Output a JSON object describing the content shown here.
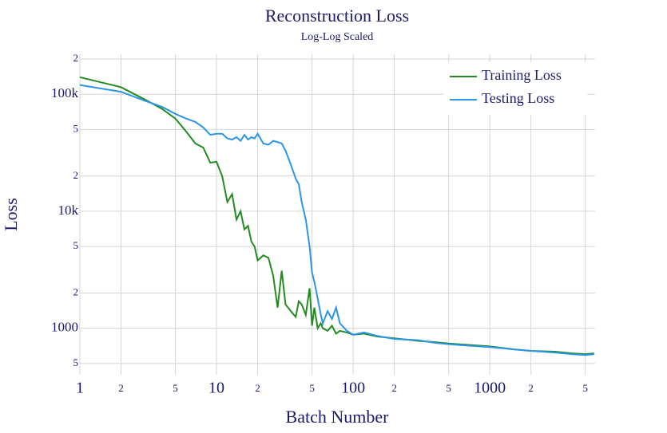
{
  "chart_data": {
    "type": "line",
    "title": "Reconstruction Loss",
    "subtitle": "Log-Log Scaled",
    "x_label": "Batch Number",
    "y_label": "Loss",
    "x_log": true,
    "y_log": true,
    "grid": true,
    "legend_position": "top-right",
    "x": [
      1,
      2,
      3,
      4,
      5,
      6,
      7,
      8,
      9,
      10,
      11,
      12,
      13,
      14,
      15,
      16,
      17,
      18,
      19,
      20,
      22,
      24,
      26,
      28,
      30,
      32,
      35,
      38,
      40,
      42,
      45,
      48,
      50,
      52,
      55,
      58,
      60,
      65,
      70,
      75,
      80,
      90,
      100,
      120,
      150,
      200,
      300,
      400,
      500,
      700,
      1000,
      1500,
      2000,
      3000,
      4000,
      5000,
      5800
    ],
    "series": [
      {
        "name": "Training Loss",
        "color": "#228b22",
        "values": [
          140000,
          115000,
          90000,
          75000,
          62000,
          48000,
          38000,
          35000,
          26000,
          26500,
          20000,
          12000,
          14000,
          8500,
          10000,
          7000,
          7500,
          5500,
          5000,
          3800,
          4200,
          4000,
          2800,
          1500,
          3100,
          1600,
          1400,
          1250,
          1700,
          1600,
          1300,
          2200,
          1050,
          1500,
          1000,
          1100,
          1000,
          950,
          1050,
          900,
          950,
          920,
          880,
          900,
          850,
          820,
          780,
          760,
          740,
          720,
          700,
          660,
          640,
          630,
          610,
          600,
          610
        ]
      },
      {
        "name": "Testing Loss",
        "color": "#2b95e8",
        "values": [
          120000,
          105000,
          88000,
          78000,
          68000,
          62000,
          58000,
          52000,
          45000,
          46000,
          46000,
          42000,
          41000,
          43000,
          40000,
          45000,
          41000,
          43000,
          42000,
          46000,
          38000,
          37000,
          40000,
          39000,
          38000,
          33000,
          25000,
          19000,
          17000,
          12000,
          8500,
          5000,
          3000,
          2500,
          1800,
          1300,
          1100,
          1400,
          1200,
          1500,
          1100,
          950,
          880,
          920,
          860,
          810,
          790,
          750,
          730,
          710,
          690,
          660,
          640,
          620,
          600,
          590,
          600
        ]
      }
    ],
    "xlim": [
      1,
      5900
    ],
    "ylim": [
      400,
      220000
    ],
    "xticks": [
      1,
      2,
      5,
      10,
      {
        "value": 20,
        "label": "2"
      },
      {
        "value": 50,
        "label": "5"
      },
      100,
      {
        "value": 200,
        "label": "2"
      },
      {
        "value": 500,
        "label": "5"
      },
      1000,
      {
        "value": 2000,
        "label": "2"
      },
      {
        "value": 5000,
        "label": "5"
      }
    ],
    "yticks": [
      {
        "value": 500,
        "label": "5"
      },
      1000,
      {
        "value": 2000,
        "label": "2"
      },
      {
        "value": 5000,
        "label": "5"
      },
      {
        "value": 10000,
        "label": "10k"
      },
      {
        "value": 20000,
        "label": "2"
      },
      {
        "value": 50000,
        "label": "5"
      },
      {
        "value": 100000,
        "label": "100k"
      },
      {
        "value": 200000,
        "label": "2"
      }
    ]
  }
}
